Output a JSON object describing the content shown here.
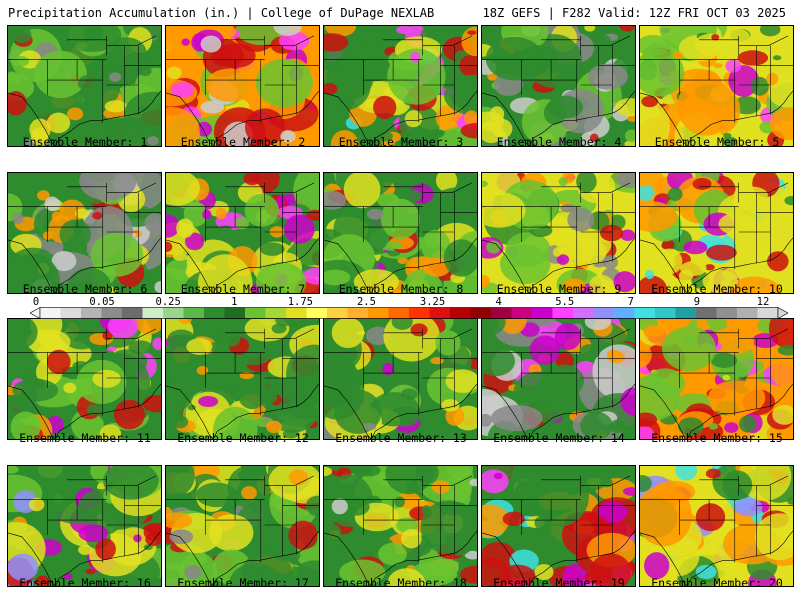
{
  "header": {
    "left": "Precipitation Accumulation (in.) | College of DuPage NEXLAB",
    "right": "18Z GEFS | F282 Valid: 12Z FRI OCT 03 2025"
  },
  "panels": [
    {
      "caption": "Ensemble Member: 1",
      "palette": [
        "#2e8b2e",
        "#6ac330",
        "#2e8b2e",
        "#e0e020",
        "#ff9900",
        "#cc1010",
        "#888888"
      ]
    },
    {
      "caption": "Ensemble Member: 2",
      "palette": [
        "#ff9900",
        "#cc1010",
        "#6ac330",
        "#cc00cc",
        "#e0e020",
        "#ff40ff",
        "#cccccc"
      ]
    },
    {
      "caption": "Ensemble Member: 3",
      "palette": [
        "#2e8b2e",
        "#6ac330",
        "#e0e020",
        "#ff9900",
        "#cc1010",
        "#ff40ff",
        "#40e0e0"
      ]
    },
    {
      "caption": "Ensemble Member: 4",
      "palette": [
        "#2e8b2e",
        "#888888",
        "#6ac330",
        "#e0e020",
        "#cccccc",
        "#ff9900",
        "#cc1010"
      ]
    },
    {
      "caption": "Ensemble Member: 5",
      "palette": [
        "#e0e020",
        "#ff9900",
        "#6ac330",
        "#cc1010",
        "#2e8b2e",
        "#cc00cc",
        "#ff40ff"
      ]
    },
    {
      "caption": "Ensemble Member: 6",
      "palette": [
        "#2e8b2e",
        "#6ac330",
        "#888888",
        "#e0e020",
        "#ff9900",
        "#cc1010",
        "#cccccc"
      ]
    },
    {
      "caption": "Ensemble Member: 7",
      "palette": [
        "#2e8b2e",
        "#6ac330",
        "#e0e020",
        "#ff9900",
        "#cc1010",
        "#cc00cc",
        "#ff40ff"
      ]
    },
    {
      "caption": "Ensemble Member: 8",
      "palette": [
        "#2e8b2e",
        "#6ac330",
        "#e0e020",
        "#ff9900",
        "#cc1010",
        "#cc00cc",
        "#888888"
      ]
    },
    {
      "caption": "Ensemble Member: 9",
      "palette": [
        "#e0e020",
        "#6ac330",
        "#2e8b2e",
        "#ff9900",
        "#cc1010",
        "#cc00cc",
        "#888888"
      ]
    },
    {
      "caption": "Ensemble Member: 10",
      "palette": [
        "#e0e020",
        "#ff9900",
        "#6ac330",
        "#cc1010",
        "#2e8b2e",
        "#40e0e0",
        "#cc00cc"
      ]
    },
    {
      "caption": "Ensemble Member: 11",
      "palette": [
        "#2e8b2e",
        "#6ac330",
        "#e0e020",
        "#ff9900",
        "#cc1010",
        "#cc00cc",
        "#ff40ff"
      ]
    },
    {
      "caption": "Ensemble Member: 12",
      "palette": [
        "#2e8b2e",
        "#6ac330",
        "#e0e020",
        "#ff9900",
        "#cc1010",
        "#cc00cc",
        "#2e8b2e"
      ]
    },
    {
      "caption": "Ensemble Member: 13",
      "palette": [
        "#2e8b2e",
        "#6ac330",
        "#e0e020",
        "#ff9900",
        "#cc1010",
        "#cc00cc",
        "#888888"
      ]
    },
    {
      "caption": "Ensemble Member: 14",
      "palette": [
        "#2e8b2e",
        "#888888",
        "#cccccc",
        "#ff9900",
        "#cc1010",
        "#cc00cc",
        "#ff40ff"
      ]
    },
    {
      "caption": "Ensemble Member: 15",
      "palette": [
        "#ff9900",
        "#cc1010",
        "#6ac330",
        "#cc00cc",
        "#e0e020",
        "#2e8b2e",
        "#ff40ff"
      ]
    },
    {
      "caption": "Ensemble Member: 16",
      "palette": [
        "#2e8b2e",
        "#6ac330",
        "#e0e020",
        "#ff9900",
        "#cc1010",
        "#cc00cc",
        "#9090ff"
      ]
    },
    {
      "caption": "Ensemble Member: 17",
      "palette": [
        "#2e8b2e",
        "#6ac330",
        "#e0e020",
        "#ff9900",
        "#cc1010",
        "#2e8b2e",
        "#888888"
      ]
    },
    {
      "caption": "Ensemble Member: 18",
      "palette": [
        "#2e8b2e",
        "#6ac330",
        "#e0e020",
        "#2e8b2e",
        "#ff9900",
        "#cccccc",
        "#cc1010"
      ]
    },
    {
      "caption": "Ensemble Member: 19",
      "palette": [
        "#2e8b2e",
        "#ff9900",
        "#cc1010",
        "#e0e020",
        "#cc00cc",
        "#ff40ff",
        "#40e0e0"
      ]
    },
    {
      "caption": "Ensemble Member: 20",
      "palette": [
        "#e0e020",
        "#2e8b2e",
        "#ff9900",
        "#cc1010",
        "#cc00cc",
        "#40e0e0",
        "#9090ff"
      ]
    }
  ],
  "colorbar": {
    "labels": [
      "0",
      "0.05",
      "0.25",
      "1",
      "1.75",
      "2.5",
      "3.25",
      "4",
      "5.5",
      "7",
      "9",
      "12"
    ],
    "colors": [
      "#f4f4f4",
      "#dcdcdc",
      "#b4b4b4",
      "#8c8c8c",
      "#6c6c6c",
      "#cfeec8",
      "#9ad68a",
      "#5cb848",
      "#2e8b2e",
      "#1f6e1f",
      "#6ac330",
      "#a8d838",
      "#e0e020",
      "#ffff60",
      "#ffd040",
      "#ffb030",
      "#ff9900",
      "#ff6a00",
      "#ff3300",
      "#e01010",
      "#b80000",
      "#900000",
      "#a00040",
      "#cc0080",
      "#cc00cc",
      "#ff40ff",
      "#d070ff",
      "#9090ff",
      "#60b0ff",
      "#40e0e0",
      "#30c8c8",
      "#20a0a0",
      "#707070",
      "#909090",
      "#b0b0b0",
      "#d8d8d8"
    ]
  }
}
